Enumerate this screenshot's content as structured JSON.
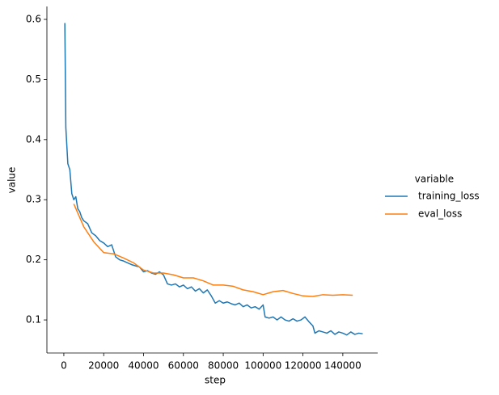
{
  "chart_data": {
    "type": "line",
    "x_label": "step",
    "y_label": "value",
    "legend_title": "variable",
    "legend": "right",
    "xlim": [
      -8500,
      157500
    ],
    "ylim": [
      0.045,
      0.6215
    ],
    "xticks": [
      0,
      20000,
      40000,
      60000,
      80000,
      100000,
      120000,
      140000
    ],
    "yticks": [
      0.1,
      0.2,
      0.3,
      0.4,
      0.5,
      0.6
    ],
    "series": [
      {
        "name": "training_loss",
        "color": "#1f77b4",
        "x": [
          500,
          1000,
          2000,
          3000,
          4000,
          5000,
          6000,
          7000,
          8000,
          9000,
          10000,
          12000,
          14000,
          16000,
          18000,
          20000,
          22000,
          24000,
          26000,
          28000,
          30000,
          32000,
          34000,
          36000,
          38000,
          40000,
          42000,
          44000,
          46000,
          48000,
          50000,
          52000,
          54000,
          56000,
          58000,
          60000,
          62000,
          64000,
          66000,
          68000,
          70000,
          72000,
          74000,
          76000,
          78000,
          80000,
          82000,
          84000,
          86000,
          88000,
          90000,
          92000,
          94000,
          96000,
          98000,
          100000,
          101000,
          103000,
          105000,
          107000,
          109000,
          111000,
          113000,
          115000,
          117000,
          119000,
          121000,
          123000,
          125000,
          126000,
          128000,
          130000,
          132000,
          134000,
          136000,
          138000,
          140000,
          142000,
          144000,
          146000,
          148000,
          150000
        ],
        "values": [
          0.594,
          0.42,
          0.36,
          0.35,
          0.31,
          0.3,
          0.305,
          0.285,
          0.28,
          0.27,
          0.265,
          0.26,
          0.245,
          0.24,
          0.232,
          0.228,
          0.222,
          0.225,
          0.205,
          0.2,
          0.198,
          0.195,
          0.192,
          0.19,
          0.188,
          0.18,
          0.182,
          0.178,
          0.176,
          0.18,
          0.175,
          0.16,
          0.158,
          0.16,
          0.155,
          0.158,
          0.152,
          0.155,
          0.148,
          0.152,
          0.145,
          0.15,
          0.14,
          0.128,
          0.132,
          0.128,
          0.13,
          0.127,
          0.125,
          0.128,
          0.122,
          0.125,
          0.12,
          0.122,
          0.118,
          0.125,
          0.105,
          0.103,
          0.105,
          0.1,
          0.105,
          0.1,
          0.098,
          0.102,
          0.098,
          0.1,
          0.105,
          0.097,
          0.09,
          0.078,
          0.082,
          0.08,
          0.078,
          0.082,
          0.076,
          0.08,
          0.078,
          0.075,
          0.08,
          0.076,
          0.078,
          0.077
        ]
      },
      {
        "name": "eval_loss",
        "color": "#ff7f0e",
        "x": [
          5000,
          10000,
          15000,
          20000,
          25000,
          30000,
          35000,
          40000,
          45000,
          50000,
          55000,
          60000,
          65000,
          70000,
          75000,
          80000,
          85000,
          90000,
          95000,
          100000,
          105000,
          110000,
          115000,
          120000,
          125000,
          130000,
          135000,
          140000,
          145000
        ],
        "values": [
          0.293,
          0.255,
          0.23,
          0.212,
          0.21,
          0.203,
          0.195,
          0.183,
          0.178,
          0.178,
          0.175,
          0.17,
          0.17,
          0.165,
          0.158,
          0.158,
          0.156,
          0.15,
          0.147,
          0.142,
          0.147,
          0.149,
          0.144,
          0.14,
          0.139,
          0.142,
          0.141,
          0.142,
          0.141
        ]
      }
    ]
  }
}
